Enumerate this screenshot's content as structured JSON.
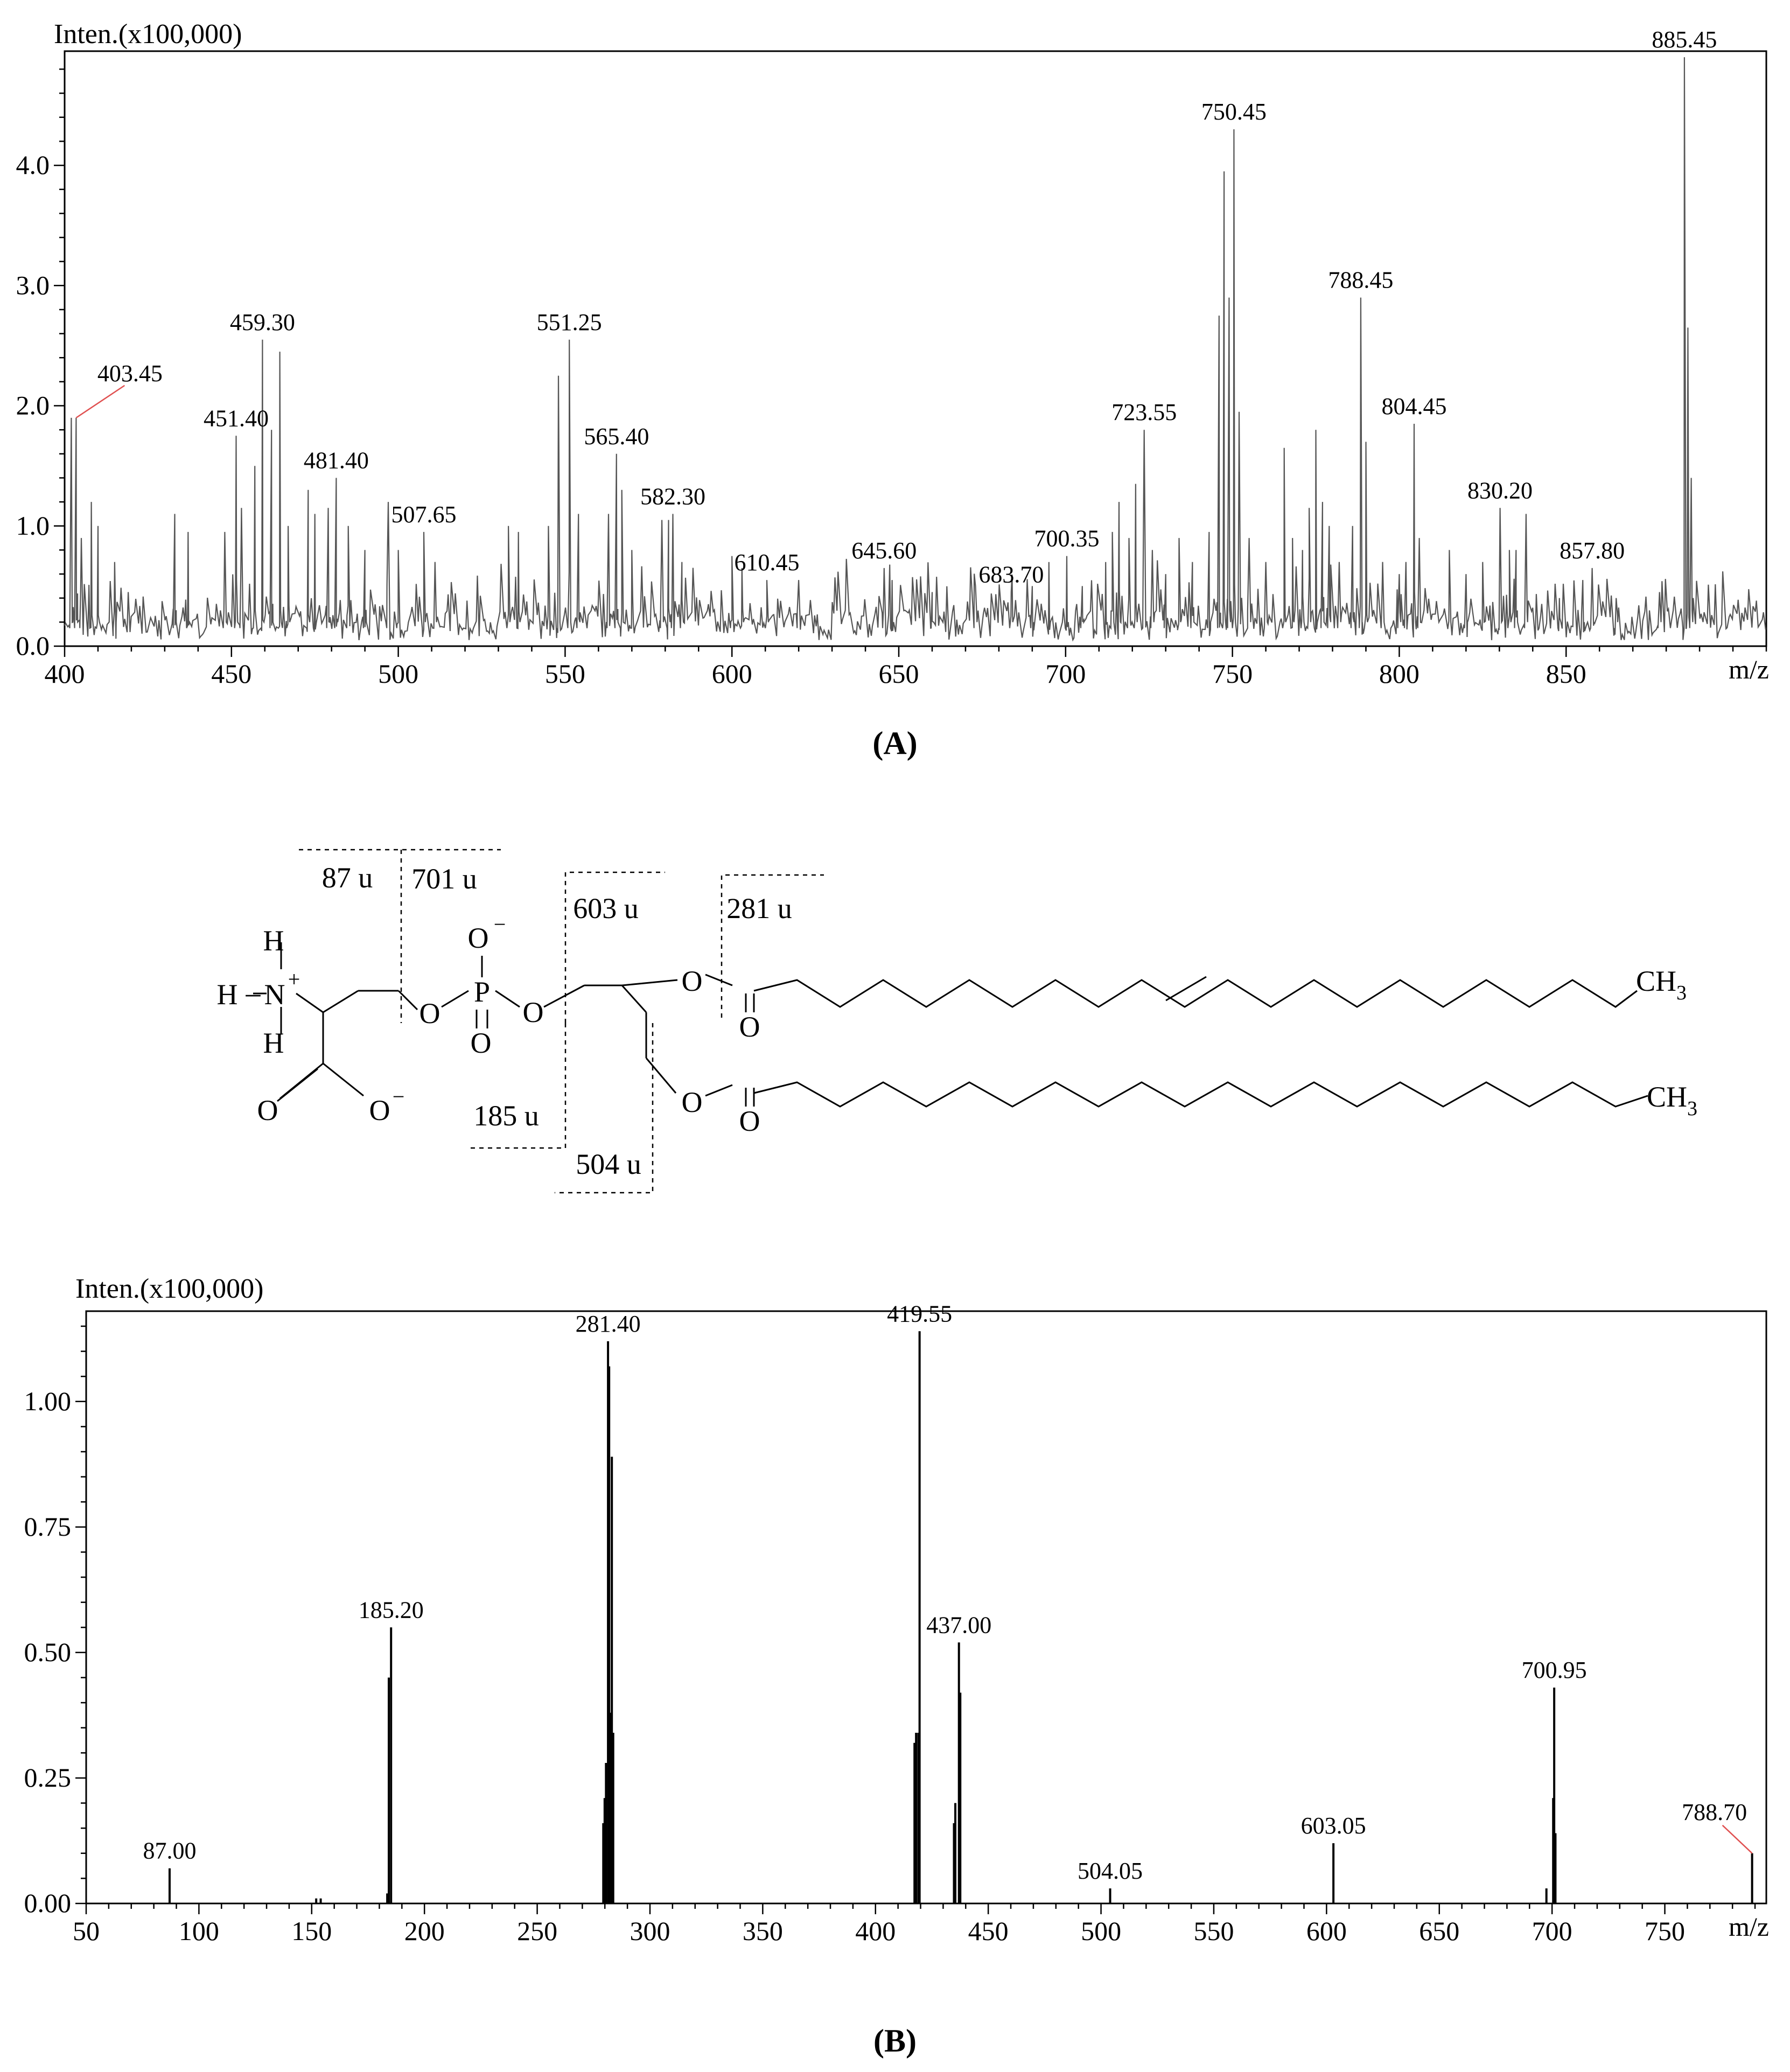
{
  "panels": {
    "a_label": "(A)",
    "b_label": "(B)"
  },
  "chart_data": [
    {
      "type": "line",
      "panel": "A",
      "ylabel": "Inten.(x100,000)",
      "xlabel": "m/z",
      "xlim": [
        400,
        910
      ],
      "ylim": [
        0,
        4.95
      ],
      "x_ticks": [
        400,
        450,
        500,
        550,
        600,
        650,
        700,
        750,
        800,
        850
      ],
      "y_ticks": [
        0.0,
        1.0,
        2.0,
        3.0,
        4.0
      ],
      "grid": false,
      "line_color": "#555555",
      "peaks": [
        {
          "x": 402,
          "y": 1.9
        },
        {
          "x": 403.45,
          "y": 1.9
        },
        {
          "x": 405,
          "y": 0.9
        },
        {
          "x": 408,
          "y": 1.2
        },
        {
          "x": 410,
          "y": 1.0
        },
        {
          "x": 415,
          "y": 0.7
        },
        {
          "x": 433,
          "y": 1.1
        },
        {
          "x": 437,
          "y": 0.95
        },
        {
          "x": 448,
          "y": 0.95
        },
        {
          "x": 451.4,
          "y": 1.75
        },
        {
          "x": 453,
          "y": 1.15
        },
        {
          "x": 457,
          "y": 1.5
        },
        {
          "x": 459.3,
          "y": 2.55
        },
        {
          "x": 462,
          "y": 1.8
        },
        {
          "x": 464.5,
          "y": 2.45
        },
        {
          "x": 467,
          "y": 1.0
        },
        {
          "x": 473,
          "y": 1.3
        },
        {
          "x": 475,
          "y": 1.1
        },
        {
          "x": 479,
          "y": 1.15
        },
        {
          "x": 481.4,
          "y": 1.4
        },
        {
          "x": 485,
          "y": 1.0
        },
        {
          "x": 490,
          "y": 0.8
        },
        {
          "x": 497,
          "y": 1.2
        },
        {
          "x": 500,
          "y": 0.8
        },
        {
          "x": 507.65,
          "y": 0.95
        },
        {
          "x": 511,
          "y": 0.7
        },
        {
          "x": 533,
          "y": 1.0
        },
        {
          "x": 536,
          "y": 0.95
        },
        {
          "x": 545,
          "y": 1.0
        },
        {
          "x": 548,
          "y": 2.25
        },
        {
          "x": 551.25,
          "y": 2.55
        },
        {
          "x": 554,
          "y": 1.1
        },
        {
          "x": 563,
          "y": 1.1
        },
        {
          "x": 565.4,
          "y": 1.6
        },
        {
          "x": 567,
          "y": 1.3
        },
        {
          "x": 570,
          "y": 0.8
        },
        {
          "x": 579,
          "y": 1.05
        },
        {
          "x": 581,
          "y": 1.05
        },
        {
          "x": 582.3,
          "y": 1.1
        },
        {
          "x": 585,
          "y": 0.7
        },
        {
          "x": 600,
          "y": 0.75
        },
        {
          "x": 603,
          "y": 0.65
        },
        {
          "x": 610.45,
          "y": 0.55
        },
        {
          "x": 620,
          "y": 0.55
        },
        {
          "x": 645.6,
          "y": 0.65
        },
        {
          "x": 648,
          "y": 0.55
        },
        {
          "x": 660,
          "y": 0.45
        },
        {
          "x": 673,
          "y": 0.5
        },
        {
          "x": 683.7,
          "y": 0.45
        },
        {
          "x": 690,
          "y": 0.5
        },
        {
          "x": 695,
          "y": 0.7
        },
        {
          "x": 700.35,
          "y": 0.75
        },
        {
          "x": 705,
          "y": 0.5
        },
        {
          "x": 712,
          "y": 0.7
        },
        {
          "x": 714,
          "y": 0.95
        },
        {
          "x": 716,
          "y": 1.2
        },
        {
          "x": 719,
          "y": 0.9
        },
        {
          "x": 721,
          "y": 1.35
        },
        {
          "x": 723.55,
          "y": 1.8
        },
        {
          "x": 726,
          "y": 0.8
        },
        {
          "x": 730,
          "y": 0.6
        },
        {
          "x": 734,
          "y": 0.9
        },
        {
          "x": 738,
          "y": 0.7
        },
        {
          "x": 743,
          "y": 0.95
        },
        {
          "x": 746,
          "y": 2.75
        },
        {
          "x": 747.5,
          "y": 3.95
        },
        {
          "x": 749,
          "y": 2.9
        },
        {
          "x": 750.45,
          "y": 4.3
        },
        {
          "x": 752,
          "y": 1.95
        },
        {
          "x": 755,
          "y": 0.9
        },
        {
          "x": 760,
          "y": 0.7
        },
        {
          "x": 765.5,
          "y": 1.65
        },
        {
          "x": 768,
          "y": 0.9
        },
        {
          "x": 771,
          "y": 0.8
        },
        {
          "x": 773,
          "y": 1.15
        },
        {
          "x": 775,
          "y": 1.8
        },
        {
          "x": 777,
          "y": 1.2
        },
        {
          "x": 779,
          "y": 1.0
        },
        {
          "x": 782,
          "y": 0.7
        },
        {
          "x": 786,
          "y": 1.0
        },
        {
          "x": 788.45,
          "y": 2.9
        },
        {
          "x": 790,
          "y": 1.7
        },
        {
          "x": 795,
          "y": 0.7
        },
        {
          "x": 800,
          "y": 0.6
        },
        {
          "x": 802,
          "y": 0.7
        },
        {
          "x": 804.45,
          "y": 1.85
        },
        {
          "x": 806,
          "y": 0.9
        },
        {
          "x": 815,
          "y": 0.8
        },
        {
          "x": 820,
          "y": 0.6
        },
        {
          "x": 825,
          "y": 0.7
        },
        {
          "x": 830.2,
          "y": 1.15
        },
        {
          "x": 833,
          "y": 0.8
        },
        {
          "x": 835,
          "y": 0.8
        },
        {
          "x": 838,
          "y": 1.1
        },
        {
          "x": 848,
          "y": 0.4
        },
        {
          "x": 855,
          "y": 0.55
        },
        {
          "x": 857.8,
          "y": 0.65
        },
        {
          "x": 865,
          "y": 0.4
        },
        {
          "x": 878,
          "y": 0.45
        },
        {
          "x": 885.45,
          "y": 4.9
        },
        {
          "x": 886.5,
          "y": 2.65
        },
        {
          "x": 887.5,
          "y": 1.4
        }
      ],
      "annotations": [
        {
          "x": 403.45,
          "y": 1.9,
          "label": "403.45",
          "leader": true
        },
        {
          "x": 451.4,
          "y": 1.75,
          "label": "451.40"
        },
        {
          "x": 459.3,
          "y": 2.55,
          "label": "459.30"
        },
        {
          "x": 481.4,
          "y": 1.4,
          "label": "481.40"
        },
        {
          "x": 507.65,
          "y": 0.95,
          "label": "507.65"
        },
        {
          "x": 551.25,
          "y": 2.55,
          "label": "551.25"
        },
        {
          "x": 565.4,
          "y": 1.6,
          "label": "565.40"
        },
        {
          "x": 582.3,
          "y": 1.1,
          "label": "582.30"
        },
        {
          "x": 610.45,
          "y": 0.55,
          "label": "610.45"
        },
        {
          "x": 645.6,
          "y": 0.65,
          "label": "645.60"
        },
        {
          "x": 683.7,
          "y": 0.45,
          "label": "683.70"
        },
        {
          "x": 700.35,
          "y": 0.75,
          "label": "700.35"
        },
        {
          "x": 723.55,
          "y": 1.8,
          "label": "723.55"
        },
        {
          "x": 750.45,
          "y": 4.3,
          "label": "750.45"
        },
        {
          "x": 788.45,
          "y": 2.9,
          "label": "788.45"
        },
        {
          "x": 804.45,
          "y": 1.85,
          "label": "804.45"
        },
        {
          "x": 830.2,
          "y": 1.15,
          "label": "830.20"
        },
        {
          "x": 857.8,
          "y": 0.65,
          "label": "857.80"
        },
        {
          "x": 885.45,
          "y": 4.9,
          "label": "885.45"
        }
      ]
    },
    {
      "type": "bar",
      "panel": "B",
      "ylabel": "Inten.(x100,000)",
      "xlabel": "m/z",
      "xlim": [
        50,
        795
      ],
      "ylim": [
        0,
        1.18
      ],
      "x_ticks": [
        50,
        100,
        150,
        200,
        250,
        300,
        350,
        400,
        450,
        500,
        550,
        600,
        650,
        700,
        750
      ],
      "y_ticks": [
        0.0,
        0.25,
        0.5,
        0.75,
        1.0
      ],
      "y_tick_labels": [
        "0.00",
        "0.25",
        "0.50",
        "0.75",
        "1.00"
      ],
      "grid": false,
      "bar_color": "#000000",
      "peaks": [
        {
          "x": 87.0,
          "y": 0.07
        },
        {
          "x": 152,
          "y": 0.01
        },
        {
          "x": 154,
          "y": 0.01
        },
        {
          "x": 184.2,
          "y": 0.45
        },
        {
          "x": 185.2,
          "y": 0.55
        },
        {
          "x": 183.5,
          "y": 0.02
        },
        {
          "x": 279.3,
          "y": 0.16
        },
        {
          "x": 279.9,
          "y": 0.21
        },
        {
          "x": 280.5,
          "y": 0.28
        },
        {
          "x": 281.4,
          "y": 1.12
        },
        {
          "x": 281.9,
          "y": 1.07
        },
        {
          "x": 282.5,
          "y": 0.38
        },
        {
          "x": 283.1,
          "y": 0.89
        },
        {
          "x": 283.7,
          "y": 0.34
        },
        {
          "x": 417.3,
          "y": 0.32
        },
        {
          "x": 418.0,
          "y": 0.34
        },
        {
          "x": 419.0,
          "y": 0.34
        },
        {
          "x": 419.55,
          "y": 1.14
        },
        {
          "x": 434.8,
          "y": 0.16
        },
        {
          "x": 435.4,
          "y": 0.2
        },
        {
          "x": 437.0,
          "y": 0.52
        },
        {
          "x": 437.6,
          "y": 0.42
        },
        {
          "x": 504.05,
          "y": 0.03
        },
        {
          "x": 603.05,
          "y": 0.12
        },
        {
          "x": 697.5,
          "y": 0.03
        },
        {
          "x": 700.95,
          "y": 0.43
        },
        {
          "x": 700.5,
          "y": 0.21
        },
        {
          "x": 701.5,
          "y": 0.14
        },
        {
          "x": 788.7,
          "y": 0.1
        }
      ],
      "annotations": [
        {
          "x": 87.0,
          "y": 0.07,
          "label": "87.00"
        },
        {
          "x": 185.2,
          "y": 0.55,
          "label": "185.20"
        },
        {
          "x": 281.4,
          "y": 1.12,
          "label": "281.40"
        },
        {
          "x": 419.55,
          "y": 1.14,
          "label": "419.55"
        },
        {
          "x": 437.0,
          "y": 0.52,
          "label": "437.00"
        },
        {
          "x": 504.05,
          "y": 0.03,
          "label": "504.05"
        },
        {
          "x": 603.05,
          "y": 0.12,
          "label": "603.05"
        },
        {
          "x": 700.95,
          "y": 0.43,
          "label": "700.95"
        },
        {
          "x": 788.7,
          "y": 0.1,
          "label": "788.70",
          "leader": true
        }
      ]
    }
  ],
  "structure": {
    "fragments": [
      {
        "name": "87",
        "label": "87 u"
      },
      {
        "name": "701",
        "label": "701 u"
      },
      {
        "name": "603",
        "label": "603 u"
      },
      {
        "name": "281",
        "label": "281 u"
      },
      {
        "name": "185",
        "label": "185 u"
      },
      {
        "name": "504",
        "label": "504 u"
      }
    ],
    "atoms": {
      "H": "H",
      "N": "N",
      "plus": "+",
      "minus": "−",
      "O": "O",
      "P": "P",
      "CH": "CH",
      "three": "3",
      "dash": "–"
    }
  }
}
